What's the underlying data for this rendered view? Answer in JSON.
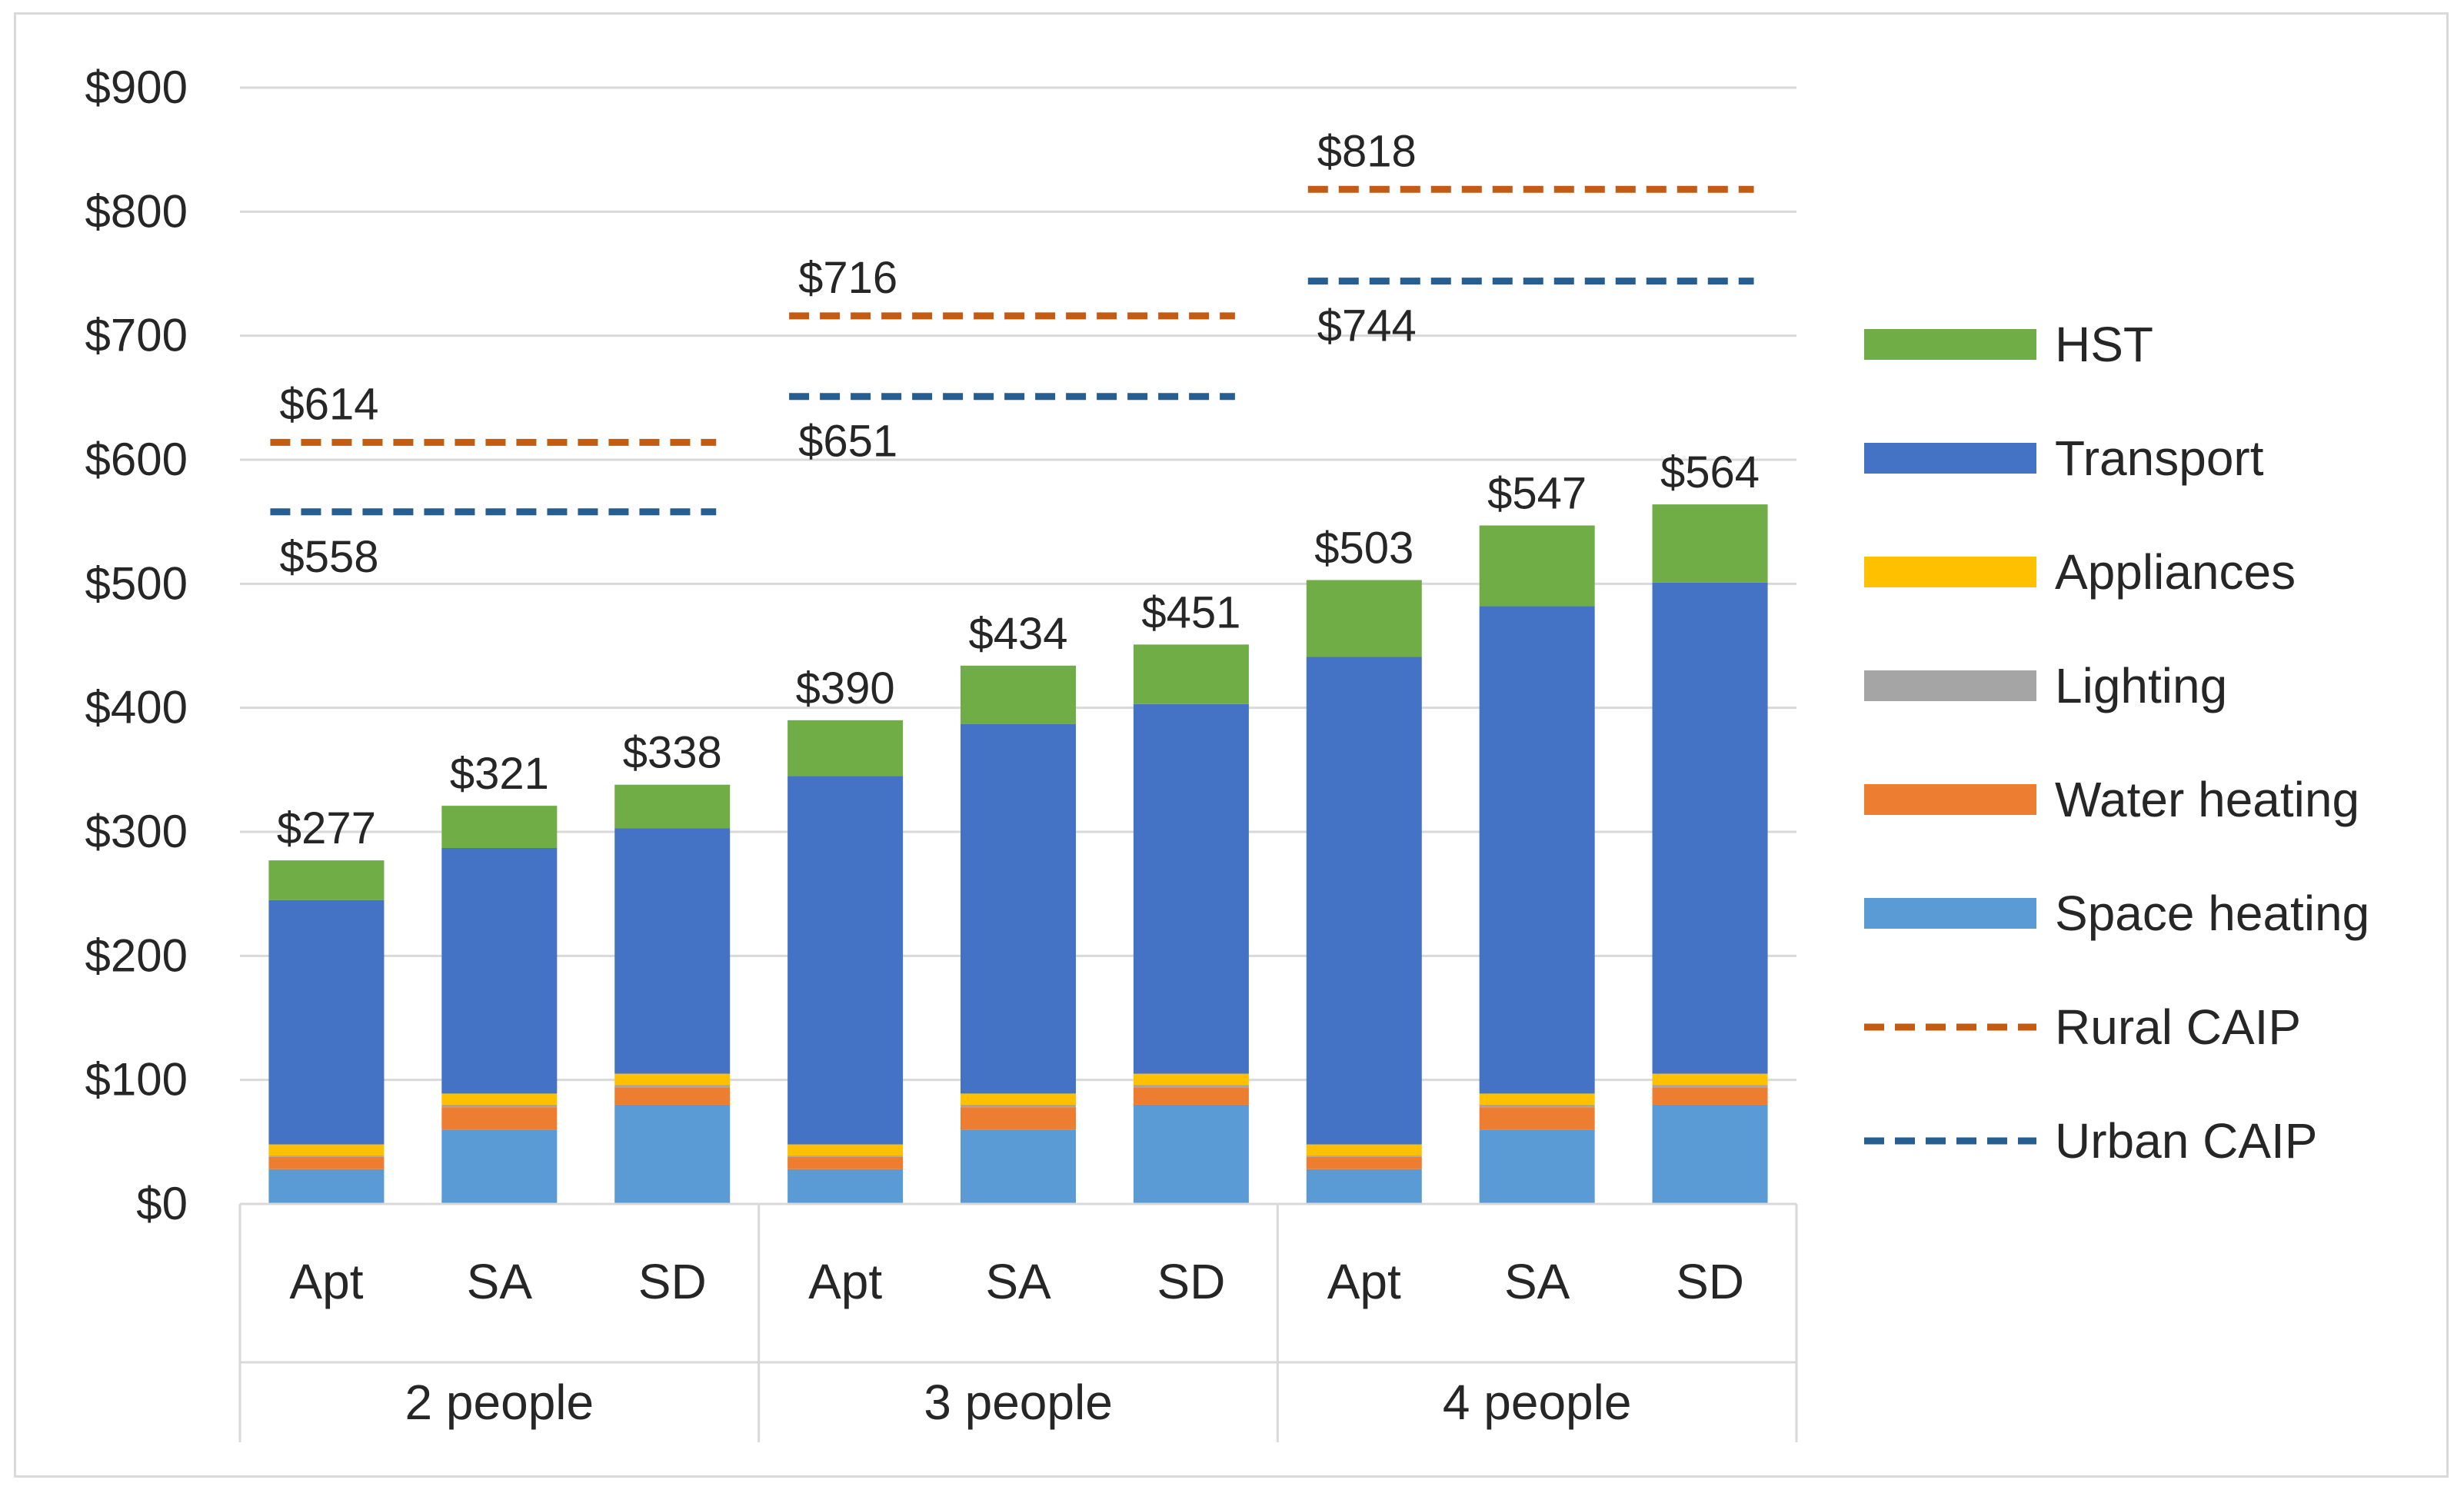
{
  "chart_data": {
    "type": "bar",
    "stacked": true,
    "title": "",
    "xlabel": "",
    "ylabel": "",
    "ylim": [
      0,
      900
    ],
    "ytick_step": 100,
    "ytick_labels": [
      "$0",
      "$100",
      "$200",
      "$300",
      "$400",
      "$500",
      "$600",
      "$700",
      "$800",
      "$900"
    ],
    "grid": true,
    "legend_position": "right",
    "groups": [
      {
        "label": "2 people",
        "categories": [
          "Apt",
          "SA",
          "SD"
        ],
        "totals": [
          277,
          321,
          338
        ],
        "total_labels": [
          "$277",
          "$321",
          "$338"
        ],
        "rural_caip": 614,
        "rural_caip_label": "$614",
        "urban_caip": 558,
        "urban_caip_label": "$558"
      },
      {
        "label": "3 people",
        "categories": [
          "Apt",
          "SA",
          "SD"
        ],
        "totals": [
          390,
          434,
          451
        ],
        "total_labels": [
          "$390",
          "$434",
          "$451"
        ],
        "rural_caip": 716,
        "rural_caip_label": "$716",
        "urban_caip": 651,
        "urban_caip_label": "$651"
      },
      {
        "label": "4 people",
        "categories": [
          "Apt",
          "SA",
          "SD"
        ],
        "totals": [
          503,
          547,
          564
        ],
        "total_labels": [
          "$503",
          "$547",
          "$564"
        ],
        "rural_caip": 818,
        "rural_caip_label": "$818",
        "urban_caip": 744,
        "urban_caip_label": "$744"
      }
    ],
    "series": [
      {
        "name": "Space heating",
        "color": "#5b9bd5",
        "values": [
          28,
          60,
          80,
          28,
          60,
          80,
          28,
          60,
          80
        ]
      },
      {
        "name": "Water heating",
        "color": "#ed7d31",
        "values": [
          10,
          18,
          14,
          10,
          18,
          14,
          10,
          18,
          14
        ]
      },
      {
        "name": "Lighting",
        "color": "#a5a5a5",
        "values": [
          1,
          2,
          2,
          1,
          2,
          2,
          1,
          2,
          2
        ]
      },
      {
        "name": "Appliances",
        "color": "#ffc000",
        "values": [
          9,
          9,
          9,
          9,
          9,
          9,
          9,
          9,
          9
        ]
      },
      {
        "name": "Transport",
        "color": "#4472c4",
        "values": [
          197,
          198,
          198,
          297,
          298,
          298,
          393,
          393,
          396
        ]
      },
      {
        "name": "HST",
        "color": "#70ad47",
        "values": [
          32,
          34,
          35,
          45,
          47,
          48,
          62,
          65,
          63
        ]
      }
    ],
    "lines": [
      {
        "name": "Rural CAIP",
        "color": "#c55a11",
        "dash": true
      },
      {
        "name": "Urban CAIP",
        "color": "#255e91",
        "dash": true
      }
    ],
    "legend": [
      {
        "name": "HST",
        "color": "#70ad47",
        "style": "solid"
      },
      {
        "name": "Transport",
        "color": "#4472c4",
        "style": "solid"
      },
      {
        "name": "Appliances",
        "color": "#ffc000",
        "style": "solid"
      },
      {
        "name": "Lighting",
        "color": "#a5a5a5",
        "style": "solid"
      },
      {
        "name": "Water heating",
        "color": "#ed7d31",
        "style": "solid"
      },
      {
        "name": "Space heating",
        "color": "#5b9bd5",
        "style": "solid"
      },
      {
        "name": "Rural CAIP",
        "color": "#c55a11",
        "style": "dash"
      },
      {
        "name": "Urban CAIP",
        "color": "#255e91",
        "style": "dash"
      }
    ]
  }
}
